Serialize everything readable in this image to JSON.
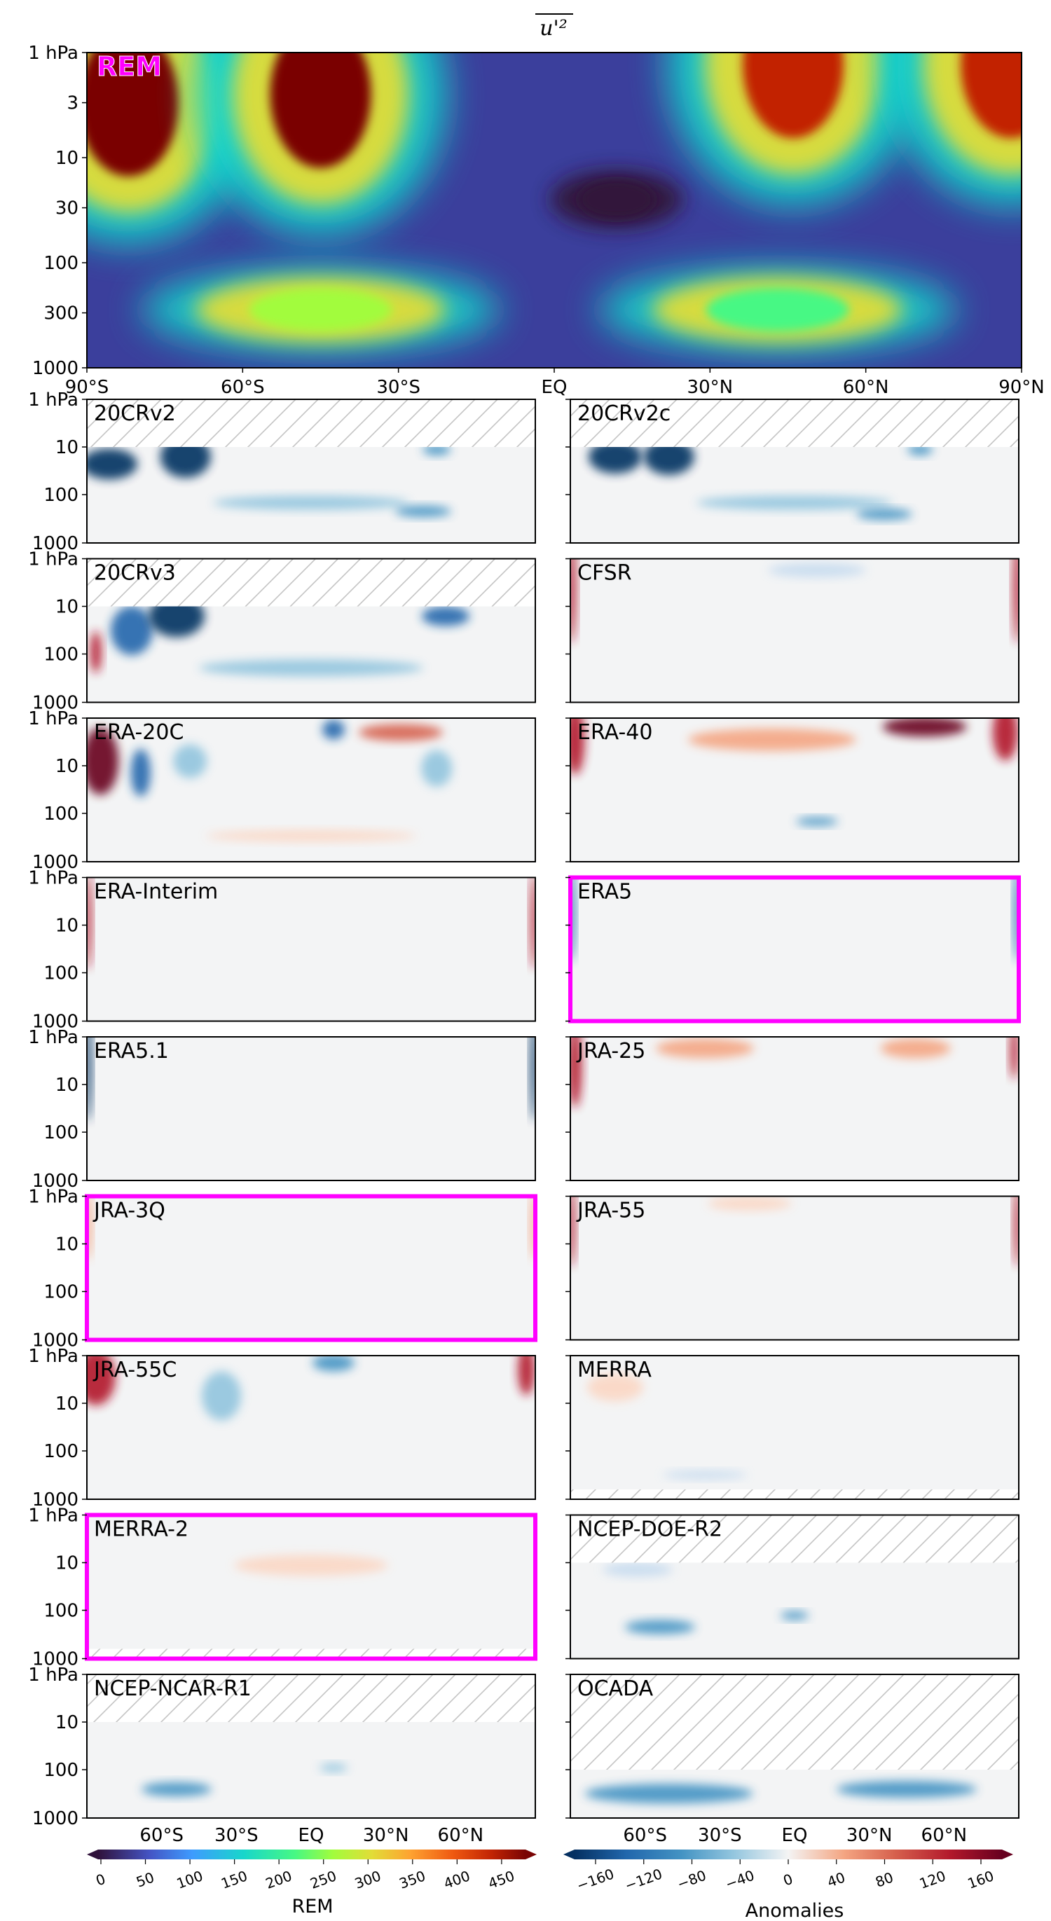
{
  "figure": {
    "title": "u'²",
    "highlight_color": "#ff00ff"
  },
  "chart_data": [
    {
      "type": "heatmap",
      "panel": "REM",
      "label": "REM",
      "xlabel": "",
      "ylabel": "",
      "xticks": [
        "90°S",
        "60°S",
        "30°S",
        "EQ",
        "30°N",
        "60°N",
        "90°N"
      ],
      "yticks": [
        "1 hPa",
        "3",
        "10",
        "30",
        "100",
        "300",
        "1000"
      ],
      "ylim": [
        1000,
        1
      ],
      "yscale": "log",
      "colormap": "turbo",
      "blobs": [
        {
          "lat": -82,
          "p": 3,
          "value": 470
        },
        {
          "lat": -45,
          "p": 2.5,
          "value": 470
        },
        {
          "lat": 46,
          "p": 1.3,
          "value": 450
        },
        {
          "lat": 88,
          "p": 1.3,
          "value": 450
        },
        {
          "lat": -45,
          "p": 280,
          "value": 260
        },
        {
          "lat": 43,
          "p": 280,
          "value": 230
        },
        {
          "lat": 12,
          "p": 25,
          "value": 5
        }
      ]
    },
    {
      "type": "heatmap",
      "panels": [
        {
          "name": "20CRv2",
          "highlight": false
        },
        {
          "name": "20CRv2c",
          "highlight": false
        },
        {
          "name": "20CRv3",
          "highlight": false
        },
        {
          "name": "CFSR",
          "highlight": false
        },
        {
          "name": "ERA-20C",
          "highlight": false
        },
        {
          "name": "ERA-40",
          "highlight": false
        },
        {
          "name": "ERA-Interim",
          "highlight": false
        },
        {
          "name": "ERA5",
          "highlight": true
        },
        {
          "name": "ERA5.1",
          "highlight": false
        },
        {
          "name": "JRA-25",
          "highlight": false
        },
        {
          "name": "JRA-3Q",
          "highlight": true
        },
        {
          "name": "JRA-55",
          "highlight": false
        },
        {
          "name": "JRA-55C",
          "highlight": false
        },
        {
          "name": "MERRA",
          "highlight": false
        },
        {
          "name": "MERRA-2",
          "highlight": true
        },
        {
          "name": "NCEP-DOE-R2",
          "highlight": false
        },
        {
          "name": "NCEP-NCAR-R1",
          "highlight": false
        },
        {
          "name": "OCADA",
          "highlight": false
        }
      ],
      "yticks": [
        "1 hPa",
        "10",
        "100",
        "1000"
      ],
      "xticks": [
        "60°S",
        "30°S",
        "EQ",
        "30°N",
        "60°N"
      ]
    }
  ],
  "colorbars": {
    "rem": {
      "label": "REM",
      "ticks": [
        "0",
        "50",
        "100",
        "150",
        "200",
        "250",
        "300",
        "350",
        "400",
        "450"
      ],
      "xticks": [
        "60°S",
        "30°S",
        "EQ",
        "30°N",
        "60°N"
      ]
    },
    "anom": {
      "label": "Anomalies",
      "ticks": [
        "−160",
        "−120",
        "−80",
        "−40",
        "0",
        "40",
        "80",
        "120",
        "160"
      ],
      "xticks": [
        "60°S",
        "30°S",
        "EQ",
        "30°N",
        "60°N"
      ]
    }
  }
}
